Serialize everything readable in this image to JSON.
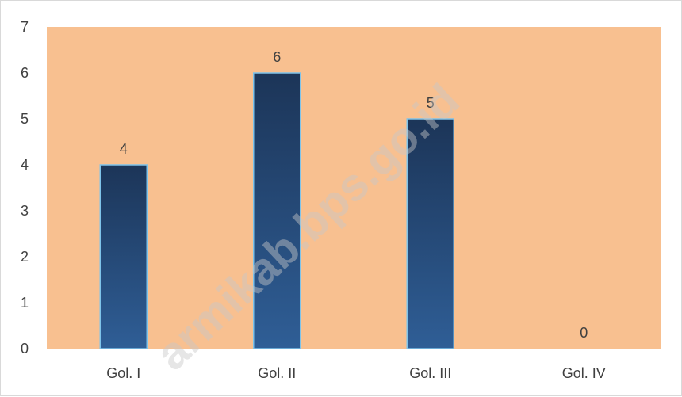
{
  "chart_data": {
    "type": "bar",
    "title": "",
    "xlabel": "",
    "ylabel": "",
    "categories": [
      "Gol. I",
      "Gol. II",
      "Gol. III",
      "Gol. IV"
    ],
    "values": [
      4,
      6,
      5,
      0
    ],
    "data_labels": [
      "4",
      "6",
      "5",
      "0"
    ],
    "ylim": [
      0,
      7
    ],
    "yticks": [
      "0",
      "1",
      "2",
      "3",
      "4",
      "5",
      "6",
      "7"
    ],
    "grid": false,
    "legend": "none"
  },
  "colors": {
    "plot_background": "#f8c090",
    "bar_top": "#1c3558",
    "bar_bottom": "#2f5e96",
    "bar_outline": "#7ec3ea",
    "text": "#404040"
  },
  "watermark": "armikab.bps.go.id"
}
